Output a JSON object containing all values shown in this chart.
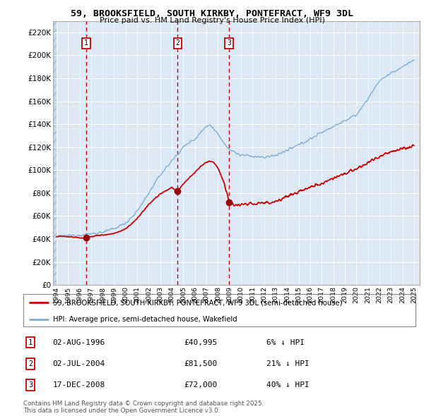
{
  "title1": "59, BROOKSFIELD, SOUTH KIRKBY, PONTEFRACT, WF9 3DL",
  "title2": "Price paid vs. HM Land Registry's House Price Index (HPI)",
  "ylabel_ticks": [
    0,
    20000,
    40000,
    60000,
    80000,
    100000,
    120000,
    140000,
    160000,
    180000,
    200000,
    220000
  ],
  "ylabel_labels": [
    "£0",
    "£20K",
    "£40K",
    "£60K",
    "£80K",
    "£100K",
    "£120K",
    "£140K",
    "£160K",
    "£180K",
    "£200K",
    "£220K"
  ],
  "ylim": [
    0,
    230000
  ],
  "xlim_start": 1993.7,
  "xlim_end": 2025.5,
  "sales": [
    {
      "num": 1,
      "year": 1996.583,
      "price": 40995,
      "label": "02-AUG-1996",
      "price_label": "£40,995",
      "pct_label": "6% ↓ HPI"
    },
    {
      "num": 2,
      "year": 2004.5,
      "price": 81500,
      "label": "02-JUL-2004",
      "price_label": "£81,500",
      "pct_label": "21% ↓ HPI"
    },
    {
      "num": 3,
      "year": 2008.958,
      "price": 72000,
      "label": "17-DEC-2008",
      "price_label": "£72,000",
      "pct_label": "40% ↓ HPI"
    }
  ],
  "red_line_color": "#cc0000",
  "blue_line_color": "#7aaed6",
  "sale_marker_color": "#990000",
  "dashed_line_color": "#cc0000",
  "background_plot": "#dde8f5",
  "grid_color": "#ffffff",
  "legend_label_red": "59, BROOKSFIELD, SOUTH KIRKBY, PONTEFRACT, WF9 3DL (semi-detached house)",
  "legend_label_blue": "HPI: Average price, semi-detached house, Wakefield",
  "footer": "Contains HM Land Registry data © Crown copyright and database right 2025.\nThis data is licensed under the Open Government Licence v3.0.",
  "xticks": [
    1994,
    1995,
    1996,
    1997,
    1998,
    1999,
    2000,
    2001,
    2002,
    2003,
    2004,
    2005,
    2006,
    2007,
    2008,
    2009,
    2010,
    2011,
    2012,
    2013,
    2014,
    2015,
    2016,
    2017,
    2018,
    2019,
    2020,
    2021,
    2022,
    2023,
    2024,
    2025
  ]
}
